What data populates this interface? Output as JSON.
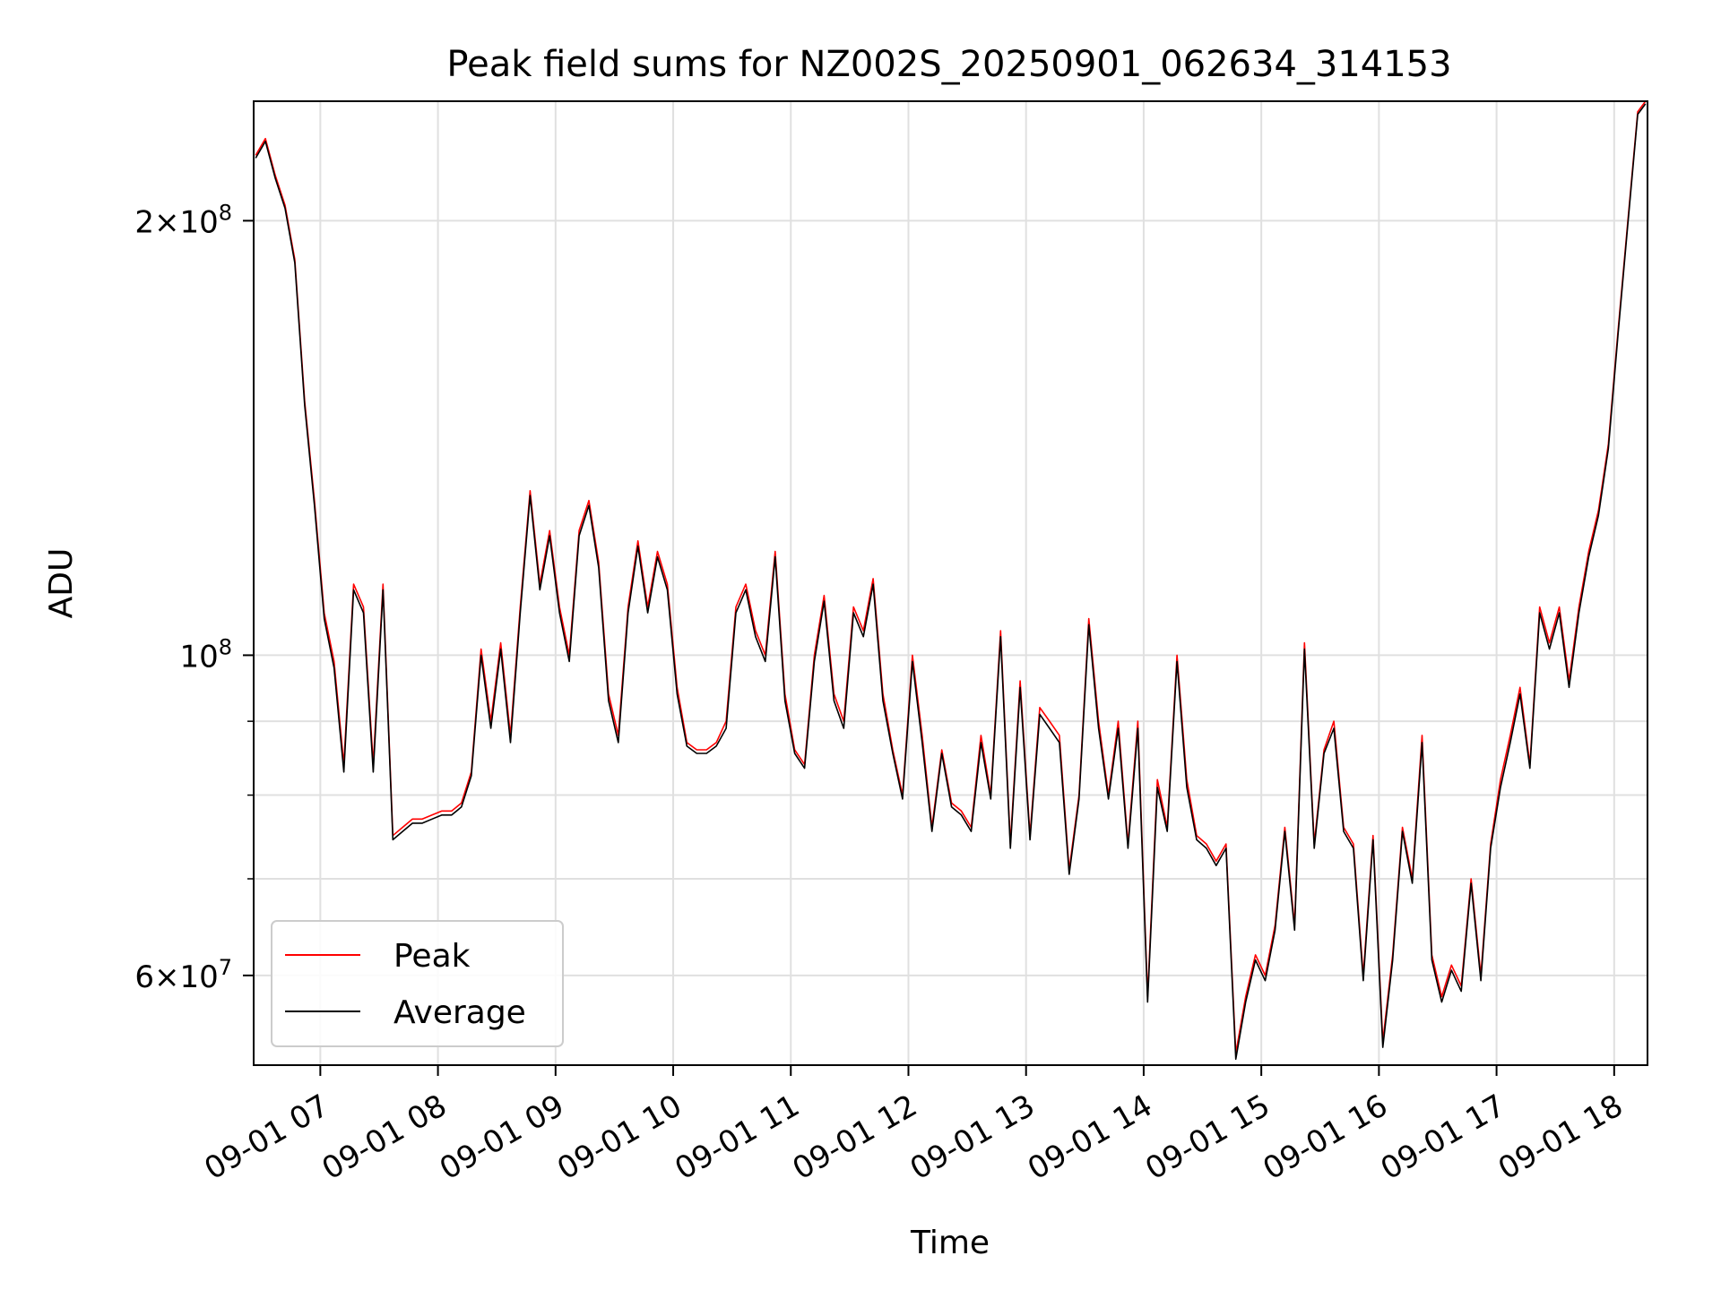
{
  "chart_data": {
    "type": "line",
    "title": "Peak field sums for NZ002S_20250901_062634_314153",
    "xlabel": "Time",
    "ylabel": "ADU",
    "y_scale": "log",
    "grid": true,
    "legend_position": "lower-left",
    "xlim": [
      "2025-09-01 06:26",
      "2025-09-01 18:17"
    ],
    "ylim": [
      52000000,
      242000000
    ],
    "x_ticks": [
      "09-01 07",
      "09-01 08",
      "09-01 09",
      "09-01 10",
      "09-01 11",
      "09-01 12",
      "09-01 13",
      "09-01 14",
      "09-01 15",
      "09-01 16",
      "09-01 17",
      "09-01 18"
    ],
    "y_ticks": [
      {
        "value": 60000000,
        "label": "6 × 10^7",
        "mant": "6",
        "exp": "7"
      },
      {
        "value": 100000000,
        "label": "10^8",
        "mant": "",
        "exp": "8"
      },
      {
        "value": 200000000,
        "label": "2 × 10^8",
        "mant": "2",
        "exp": "8"
      }
    ],
    "y_minor_ticks": [
      70000000,
      80000000,
      90000000
    ],
    "series_colors": {
      "Peak": "#ff0000",
      "Average": "#000000"
    },
    "x": [
      "06:27",
      "06:32",
      "06:37",
      "06:42",
      "06:47",
      "06:52",
      "06:57",
      "07:02",
      "07:07",
      "07:12",
      "07:17",
      "07:22",
      "07:27",
      "07:32",
      "07:37",
      "07:42",
      "07:47",
      "07:52",
      "07:57",
      "08:02",
      "08:07",
      "08:12",
      "08:17",
      "08:22",
      "08:27",
      "08:32",
      "08:37",
      "08:42",
      "08:47",
      "08:52",
      "08:57",
      "09:02",
      "09:07",
      "09:12",
      "09:17",
      "09:22",
      "09:27",
      "09:32",
      "09:37",
      "09:42",
      "09:47",
      "09:52",
      "09:57",
      "10:02",
      "10:07",
      "10:12",
      "10:17",
      "10:22",
      "10:27",
      "10:32",
      "10:37",
      "10:42",
      "10:47",
      "10:52",
      "10:57",
      "11:02",
      "11:07",
      "11:12",
      "11:17",
      "11:22",
      "11:27",
      "11:32",
      "11:37",
      "11:42",
      "11:47",
      "11:52",
      "11:57",
      "12:02",
      "12:07",
      "12:12",
      "12:17",
      "12:22",
      "12:27",
      "12:32",
      "12:37",
      "12:42",
      "12:47",
      "12:52",
      "12:57",
      "13:02",
      "13:07",
      "13:12",
      "13:17",
      "13:22",
      "13:27",
      "13:32",
      "13:37",
      "13:42",
      "13:47",
      "13:52",
      "13:57",
      "14:02",
      "14:07",
      "14:12",
      "14:17",
      "14:22",
      "14:27",
      "14:32",
      "14:37",
      "14:42",
      "14:47",
      "14:52",
      "14:57",
      "15:02",
      "15:07",
      "15:12",
      "15:17",
      "15:22",
      "15:27",
      "15:32",
      "15:37",
      "15:42",
      "15:47",
      "15:52",
      "15:57",
      "16:02",
      "16:07",
      "16:12",
      "16:17",
      "16:22",
      "16:27",
      "16:32",
      "16:37",
      "16:42",
      "16:47",
      "16:52",
      "16:57",
      "17:02",
      "17:07",
      "17:12",
      "17:17",
      "17:22",
      "17:27",
      "17:32",
      "17:37",
      "17:42",
      "17:47",
      "17:52",
      "17:57",
      "18:02",
      "18:07",
      "18:12",
      "18:16"
    ],
    "series": [
      {
        "name": "Peak",
        "values": [
          222000000,
          228000000,
          215000000,
          205000000,
          188000000,
          150000000,
          128000000,
          107000000,
          99000000,
          84000000,
          112000000,
          108000000,
          84000000,
          112000000,
          75000000,
          76000000,
          77000000,
          77000000,
          77500000,
          78000000,
          78000000,
          79000000,
          83000000,
          101000000,
          90000000,
          102000000,
          88000000,
          108000000,
          130000000,
          112000000,
          122000000,
          108000000,
          100000000,
          122000000,
          128000000,
          116000000,
          94000000,
          88000000,
          108000000,
          120000000,
          108000000,
          118000000,
          112000000,
          95000000,
          87000000,
          86000000,
          86000000,
          87000000,
          90000000,
          108000000,
          112000000,
          104000000,
          100000000,
          118000000,
          94000000,
          86000000,
          84000000,
          100000000,
          110000000,
          94000000,
          90000000,
          108000000,
          104000000,
          113000000,
          94000000,
          86000000,
          80000000,
          100000000,
          88000000,
          76000000,
          86000000,
          79000000,
          78000000,
          76000000,
          88000000,
          80000000,
          104000000,
          74000000,
          96000000,
          75000000,
          92000000,
          90000000,
          88000000,
          71000000,
          80000000,
          106000000,
          90000000,
          80000000,
          90000000,
          74000000,
          90000000,
          58000000,
          82000000,
          76000000,
          100000000,
          82000000,
          75000000,
          74000000,
          72000000,
          74000000,
          53000000,
          58000000,
          62000000,
          60000000,
          65000000,
          76000000,
          65000000,
          102000000,
          74000000,
          86000000,
          90000000,
          76000000,
          74000000,
          60000000,
          75000000,
          54000000,
          62000000,
          76000000,
          70000000,
          88000000,
          62000000,
          58000000,
          61000000,
          59000000,
          70000000,
          60000000,
          74000000,
          82000000,
          88000000,
          95000000,
          84000000,
          108000000,
          102000000,
          108000000,
          96000000,
          108000000,
          118000000,
          126000000,
          140000000,
          168000000,
          200000000,
          238000000,
          242000000
        ],
        "line_width": 1
      },
      {
        "name": "Average",
        "values": [
          221000000,
          227000000,
          214000000,
          204000000,
          187000000,
          149000000,
          127000000,
          106000000,
          98000000,
          83000000,
          111000000,
          107000000,
          83000000,
          111000000,
          74500000,
          75500000,
          76500000,
          76500000,
          77000000,
          77500000,
          77500000,
          78500000,
          82500000,
          100000000,
          89000000,
          101000000,
          87000000,
          107000000,
          129000000,
          111000000,
          121000000,
          107000000,
          99000000,
          121000000,
          127000000,
          115000000,
          93000000,
          87000000,
          107000000,
          119000000,
          107000000,
          117000000,
          111000000,
          94000000,
          86500000,
          85500000,
          85500000,
          86500000,
          89000000,
          107000000,
          111000000,
          103000000,
          99000000,
          117000000,
          93000000,
          85500000,
          83500000,
          99000000,
          109000000,
          93000000,
          89000000,
          107000000,
          103000000,
          112000000,
          93000000,
          85500000,
          79500000,
          99000000,
          87000000,
          75500000,
          85500000,
          78500000,
          77500000,
          75500000,
          87000000,
          79500000,
          103000000,
          73500000,
          95000000,
          74500000,
          91000000,
          89000000,
          87000000,
          70500000,
          79500000,
          105000000,
          89000000,
          79500000,
          89000000,
          73500000,
          89000000,
          57500000,
          81000000,
          75500000,
          99000000,
          81000000,
          74500000,
          73500000,
          71500000,
          73500000,
          52500000,
          57500000,
          61500000,
          59500000,
          64500000,
          75500000,
          64500000,
          101000000,
          73500000,
          85500000,
          89000000,
          75500000,
          73500000,
          59500000,
          74500000,
          53500000,
          61500000,
          75500000,
          69500000,
          87000000,
          61500000,
          57500000,
          60500000,
          58500000,
          69500000,
          59500000,
          73500000,
          81000000,
          87000000,
          94000000,
          83500000,
          107000000,
          101000000,
          107000000,
          95000000,
          107000000,
          117000000,
          125000000,
          139000000,
          167000000,
          199000000,
          237000000,
          241000000
        ],
        "line_width": 1
      }
    ]
  }
}
